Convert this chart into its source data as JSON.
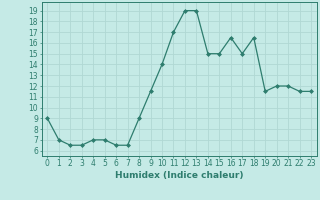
{
  "x": [
    0,
    1,
    2,
    3,
    4,
    5,
    6,
    7,
    8,
    9,
    10,
    11,
    12,
    13,
    14,
    15,
    16,
    17,
    18,
    19,
    20,
    21,
    22,
    23
  ],
  "y": [
    9,
    7,
    6.5,
    6.5,
    7,
    7,
    6.5,
    6.5,
    9,
    11.5,
    14,
    17,
    19,
    19,
    15,
    15,
    16.5,
    15,
    16.5,
    11.5,
    12,
    12,
    11.5,
    11.5
  ],
  "line_color": "#2e7d6e",
  "marker": "D",
  "markersize": 2,
  "linewidth": 0.9,
  "bg_color": "#c5eae6",
  "grid_color": "#b0d8d4",
  "xlabel": "Humidex (Indice chaleur)",
  "xlim": [
    -0.5,
    23.5
  ],
  "ylim": [
    5.5,
    19.8
  ],
  "yticks": [
    6,
    7,
    8,
    9,
    10,
    11,
    12,
    13,
    14,
    15,
    16,
    17,
    18,
    19
  ],
  "xticks": [
    0,
    1,
    2,
    3,
    4,
    5,
    6,
    7,
    8,
    9,
    10,
    11,
    12,
    13,
    14,
    15,
    16,
    17,
    18,
    19,
    20,
    21,
    22,
    23
  ],
  "tick_fontsize": 5.5,
  "label_fontsize": 6.5,
  "tick_color": "#2e7d6e",
  "axis_color": "#2e7d6e"
}
